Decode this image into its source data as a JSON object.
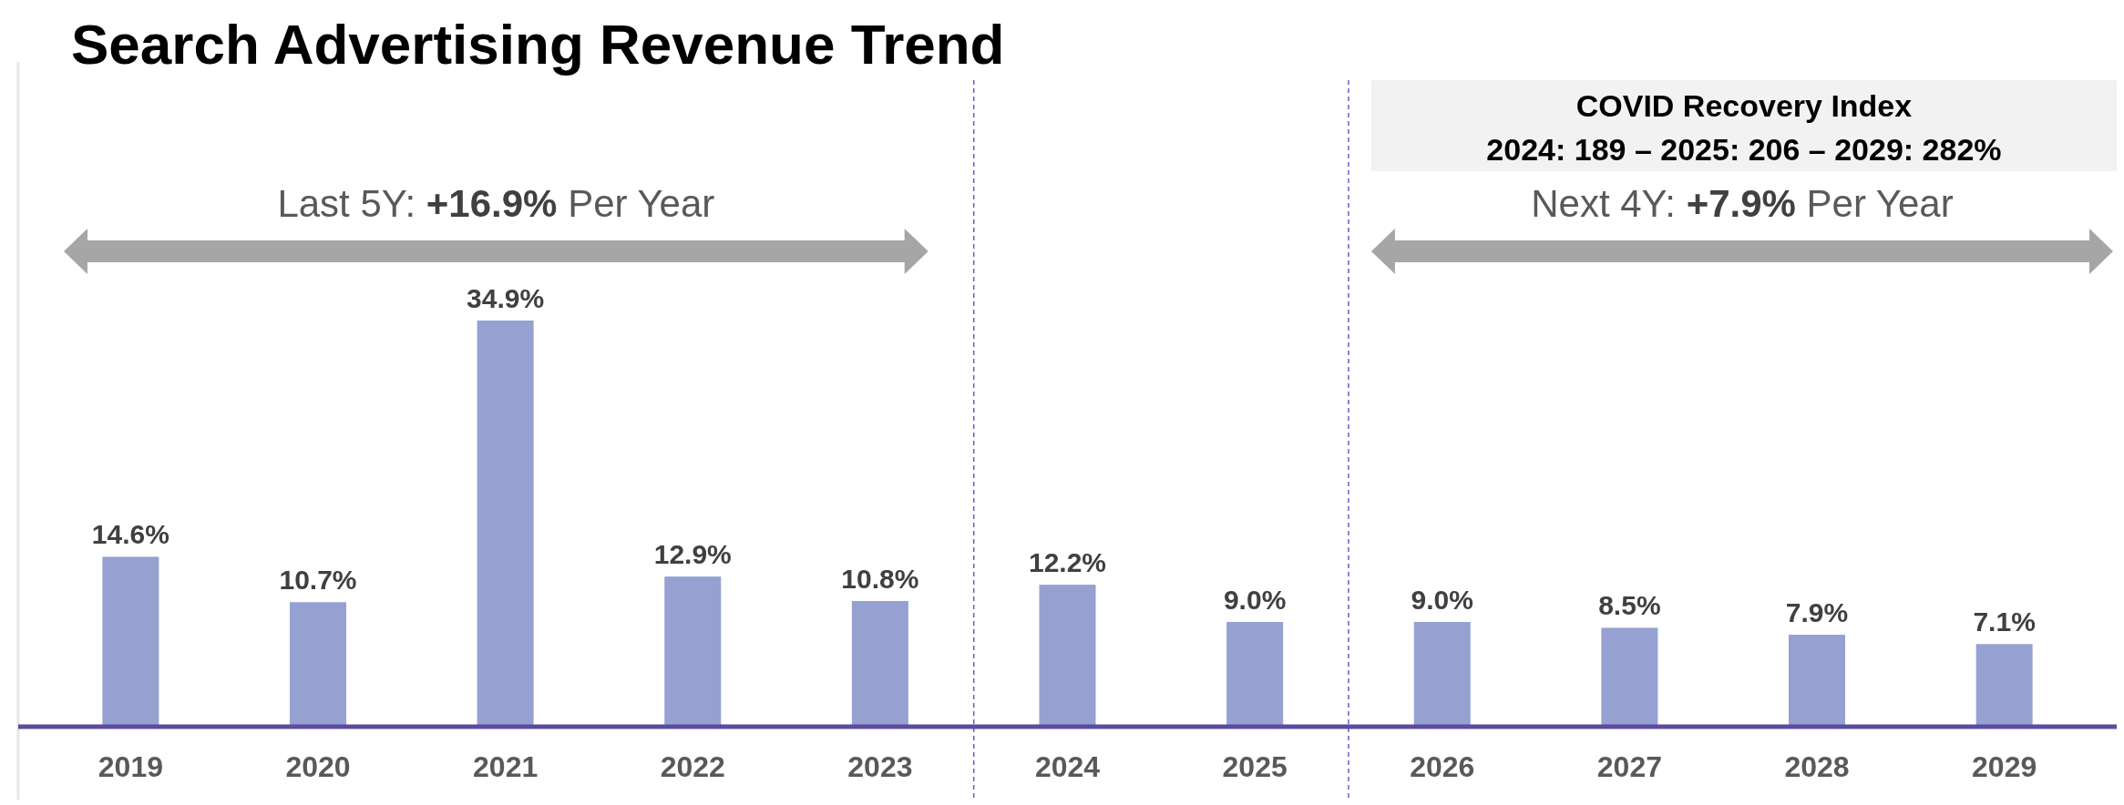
{
  "chart_data": {
    "type": "bar",
    "title": "Search Advertising Revenue Trend",
    "x": [
      2019,
      2020,
      2021,
      2022,
      2023,
      2024,
      2025,
      2026,
      2027,
      2028,
      2029
    ],
    "xlim": [
      2018.4,
      2029.6
    ],
    "xticks": [
      2019,
      2020,
      2021,
      2022,
      2023,
      2024,
      2025,
      2026,
      2027,
      2028,
      2029
    ],
    "values": [
      14.6,
      10.7,
      34.9,
      12.9,
      10.8,
      12.2,
      9.0,
      9.0,
      8.5,
      7.9,
      7.1
    ],
    "value_labels": [
      "14.6%",
      "10.7%",
      "34.9%",
      "12.9%",
      "10.8%",
      "12.2%",
      "9.0%",
      "9.0%",
      "8.5%",
      "7.9%",
      "7.1%"
    ],
    "color": "#96a1d1",
    "tick_labels": "x",
    "ref_lines": [
      {
        "axis": "x",
        "value": 2023.5,
        "color": "#6a5acd",
        "line_style": "dashed"
      },
      {
        "axis": "x",
        "value": 2025.5,
        "color": "#6a5acd",
        "line_style": "dashed"
      }
    ],
    "annotations": [
      "COVID Recovery Index\n2024: 189 – 2025: 206 – 2029: 282%",
      "Last 5Y: +16.9% Per Year",
      "Next 4Y: +7.9% Per Year"
    ]
  }
}
